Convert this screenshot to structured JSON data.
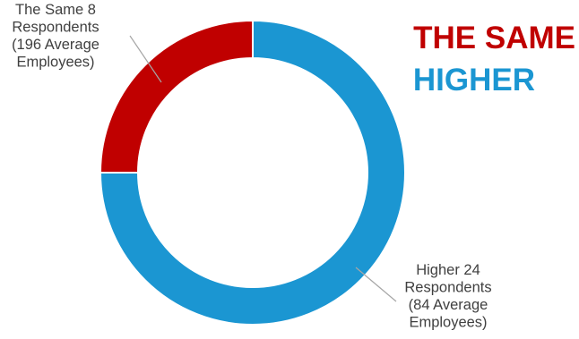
{
  "chart_data": {
    "type": "pie",
    "variant": "donut",
    "start_angle_deg": 0,
    "direction": "clockwise",
    "slices": [
      {
        "name": "Higher",
        "value": 24,
        "color": "#1b96d2",
        "label_lines": [
          "Higher 24",
          "Respondents",
          "(84 Average",
          "Employees)"
        ]
      },
      {
        "name": "The Same",
        "value": 8,
        "color": "#c00000",
        "label_lines": [
          "The Same 8",
          "Respondents",
          "(196 Average",
          "Employees)"
        ]
      }
    ],
    "legend": {
      "placement": "top-right",
      "items": [
        {
          "text": "THE SAME",
          "color": "#c00000"
        },
        {
          "text": "HIGHER",
          "color": "#1b96d2"
        }
      ]
    }
  }
}
